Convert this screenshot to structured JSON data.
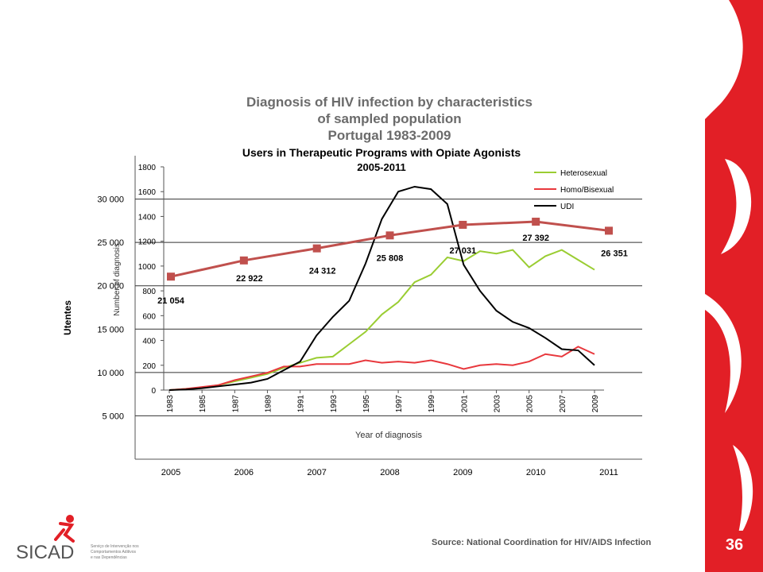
{
  "slide": {
    "title_lines": [
      "Diagnosis of HIV infection by characteristics",
      "of sampled population",
      "Portugal 1983-2009"
    ],
    "page_number": "36",
    "source": "Source: National Coordination for HIV/AIDS Infection",
    "logo_text": "SICAD",
    "logo_subtext": [
      "Serviço de Intervenção nos",
      "Comportamentos Aditivos",
      "e nas Dependências"
    ],
    "colors": {
      "brand_red": "#e21f26",
      "title_gray": "#6b6b6b"
    }
  },
  "chart_data": [
    {
      "type": "line",
      "title": "Users in Therapeutic Programs with Opiate Agonists",
      "subtitle": "2005-2011",
      "ylabel": "Utentes",
      "xlabel": "",
      "x": [
        "2005",
        "2006",
        "2007",
        "2008",
        "2009",
        "2010",
        "2011"
      ],
      "ylim": [
        0,
        35000
      ],
      "yticks": [
        "5 000",
        "10 000",
        "15 000",
        "20 000",
        "25 000",
        "30 000"
      ],
      "ytick_values": [
        5000,
        10000,
        15000,
        20000,
        25000,
        30000
      ],
      "series": [
        {
          "values": [
            21054,
            22922,
            24312,
            25808,
            27031,
            27392,
            26351
          ],
          "color": "#c0504d",
          "labels": [
            "21 054",
            "22 922",
            "24 312",
            "25 808",
            "27 031",
            "27 392",
            "26 351"
          ]
        }
      ]
    },
    {
      "type": "line",
      "xlabel": "Year of diagnosis",
      "ylabel": "Number of diagnosis",
      "x": [
        1983,
        1984,
        1985,
        1986,
        1987,
        1988,
        1989,
        1990,
        1991,
        1992,
        1993,
        1994,
        1995,
        1996,
        1997,
        1998,
        1999,
        2000,
        2001,
        2002,
        2003,
        2004,
        2005,
        2006,
        2007,
        2008,
        2009
      ],
      "xtick_labels": [
        "1983",
        "1985",
        "1987",
        "1989",
        "1991",
        "1993",
        "1995",
        "1997",
        "1999",
        "2001",
        "2003",
        "2005",
        "2007",
        "2009"
      ],
      "ylim": [
        0,
        1800
      ],
      "yticks": [
        0,
        200,
        400,
        600,
        800,
        1000,
        1200,
        1400,
        1600,
        1800
      ],
      "legend_position": "top-right",
      "series": [
        {
          "name": "Heterosexual",
          "color": "#9acd32",
          "values": [
            0,
            10,
            20,
            40,
            70,
            100,
            130,
            180,
            220,
            260,
            270,
            370,
            470,
            610,
            710,
            870,
            930,
            1070,
            1040,
            1120,
            1100,
            1130,
            990,
            1080,
            1130,
            1050,
            970
          ]
        },
        {
          "name": "Homo/Bisexual",
          "color": "#e8383d",
          "values": [
            0,
            10,
            25,
            40,
            80,
            110,
            140,
            190,
            190,
            210,
            210,
            210,
            240,
            220,
            230,
            220,
            240,
            210,
            170,
            200,
            210,
            200,
            230,
            290,
            270,
            350,
            290
          ]
        },
        {
          "name": "UDI",
          "color": "#000000",
          "values": [
            0,
            5,
            15,
            30,
            45,
            60,
            90,
            160,
            230,
            440,
            590,
            720,
            1020,
            1380,
            1600,
            1640,
            1620,
            1500,
            1010,
            800,
            640,
            550,
            500,
            420,
            330,
            320,
            200
          ]
        }
      ]
    }
  ]
}
